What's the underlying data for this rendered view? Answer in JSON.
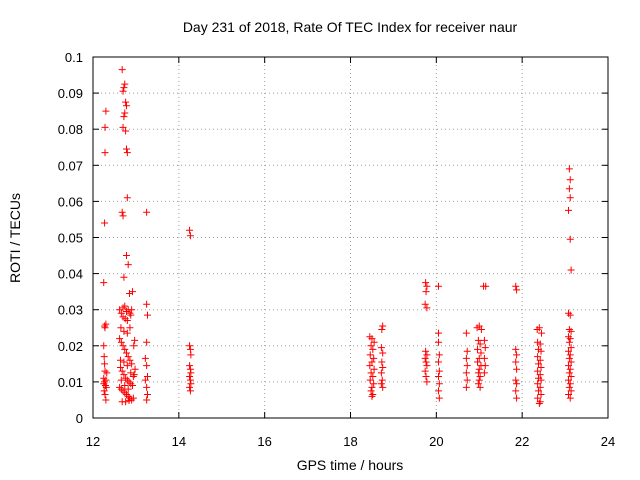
{
  "chart_data": {
    "type": "scatter",
    "title": "Day 231 of 2018, Rate Of TEC Index for receiver naur",
    "xlabel": "GPS time / hours",
    "ylabel": "ROTI / TECUs",
    "xlim": [
      12,
      24
    ],
    "ylim": [
      0,
      0.1
    ],
    "xticks": [
      12,
      14,
      16,
      18,
      20,
      22,
      24
    ],
    "yticks": [
      0,
      0.01,
      0.02,
      0.03,
      0.04,
      0.05,
      0.06,
      0.07,
      0.08,
      0.09,
      0.1
    ],
    "xtick_labels": [
      "12",
      "14",
      "16",
      "18",
      "20",
      "22",
      "24"
    ],
    "ytick_labels": [
      "0",
      "0.01",
      "0.02",
      "0.03",
      "0.04",
      "0.05",
      "0.06",
      "0.07",
      "0.08",
      "0.09",
      "0.1"
    ],
    "grid": true,
    "marker": "+",
    "color": "#ff0000",
    "series": [
      {
        "name": "ROTI",
        "points": [
          [
            12.25,
            0.0375
          ],
          [
            12.27,
            0.054
          ],
          [
            12.28,
            0.0735
          ],
          [
            12.28,
            0.0805
          ],
          [
            12.3,
            0.085
          ],
          [
            12.27,
            0.0255
          ],
          [
            12.28,
            0.025
          ],
          [
            12.3,
            0.026
          ],
          [
            12.25,
            0.02
          ],
          [
            12.26,
            0.017
          ],
          [
            12.27,
            0.015
          ],
          [
            12.28,
            0.013
          ],
          [
            12.25,
            0.011
          ],
          [
            12.27,
            0.01
          ],
          [
            12.29,
            0.009
          ],
          [
            12.31,
            0.0085
          ],
          [
            12.26,
            0.0075
          ],
          [
            12.28,
            0.0065
          ],
          [
            12.3,
            0.005
          ],
          [
            12.32,
            0.0125
          ],
          [
            12.3,
            0.0105
          ],
          [
            12.25,
            0.0095
          ],
          [
            12.68,
            0.0965
          ],
          [
            12.7,
            0.0905
          ],
          [
            12.72,
            0.0915
          ],
          [
            12.74,
            0.0925
          ],
          [
            12.76,
            0.0875
          ],
          [
            12.78,
            0.0865
          ],
          [
            12.74,
            0.0845
          ],
          [
            12.72,
            0.0835
          ],
          [
            12.76,
            0.0795
          ],
          [
            12.7,
            0.0805
          ],
          [
            12.78,
            0.0745
          ],
          [
            12.8,
            0.0735
          ],
          [
            12.68,
            0.057
          ],
          [
            12.7,
            0.056
          ],
          [
            12.8,
            0.061
          ],
          [
            12.78,
            0.045
          ],
          [
            12.82,
            0.0425
          ],
          [
            12.72,
            0.039
          ],
          [
            12.85,
            0.0345
          ],
          [
            12.92,
            0.035
          ],
          [
            13.25,
            0.057
          ],
          [
            12.62,
            0.03
          ],
          [
            12.66,
            0.029
          ],
          [
            12.7,
            0.0305
          ],
          [
            12.74,
            0.031
          ],
          [
            12.78,
            0.0295
          ],
          [
            12.82,
            0.03
          ],
          [
            12.86,
            0.029
          ],
          [
            12.9,
            0.03
          ],
          [
            12.7,
            0.028
          ],
          [
            12.75,
            0.0275
          ],
          [
            12.8,
            0.027
          ],
          [
            12.88,
            0.0285
          ],
          [
            12.65,
            0.025
          ],
          [
            12.72,
            0.024
          ],
          [
            12.8,
            0.0235
          ],
          [
            12.86,
            0.025
          ],
          [
            12.62,
            0.022
          ],
          [
            12.66,
            0.021
          ],
          [
            12.7,
            0.02
          ],
          [
            12.74,
            0.019
          ],
          [
            12.78,
            0.018
          ],
          [
            12.82,
            0.017
          ],
          [
            12.86,
            0.016
          ],
          [
            12.9,
            0.015
          ],
          [
            12.64,
            0.014
          ],
          [
            12.68,
            0.013
          ],
          [
            12.72,
            0.012
          ],
          [
            12.76,
            0.011
          ],
          [
            12.8,
            0.0105
          ],
          [
            12.84,
            0.01
          ],
          [
            12.88,
            0.0095
          ],
          [
            12.92,
            0.009
          ],
          [
            12.62,
            0.0085
          ],
          [
            12.66,
            0.008
          ],
          [
            12.7,
            0.0075
          ],
          [
            12.74,
            0.007
          ],
          [
            12.78,
            0.0065
          ],
          [
            12.82,
            0.006
          ],
          [
            12.86,
            0.0055
          ],
          [
            12.9,
            0.005
          ],
          [
            12.68,
            0.0045
          ],
          [
            12.76,
            0.0045
          ],
          [
            12.84,
            0.0048
          ],
          [
            12.94,
            0.0055
          ],
          [
            12.96,
            0.012
          ],
          [
            12.98,
            0.0135
          ],
          [
            12.95,
            0.02
          ],
          [
            12.97,
            0.0215
          ],
          [
            12.64,
            0.016
          ],
          [
            12.72,
            0.0155
          ],
          [
            12.8,
            0.0145
          ],
          [
            12.88,
            0.0125
          ],
          [
            12.94,
            0.0115
          ],
          [
            12.66,
            0.0105
          ],
          [
            12.74,
            0.009
          ],
          [
            12.82,
            0.008
          ],
          [
            13.25,
            0.0315
          ],
          [
            13.27,
            0.0285
          ],
          [
            13.25,
            0.021
          ],
          [
            13.22,
            0.0165
          ],
          [
            13.25,
            0.0145
          ],
          [
            13.27,
            0.0115
          ],
          [
            13.22,
            0.0105
          ],
          [
            13.25,
            0.0085
          ],
          [
            13.27,
            0.0065
          ],
          [
            13.25,
            0.005
          ],
          [
            14.25,
            0.052
          ],
          [
            14.27,
            0.0505
          ],
          [
            14.25,
            0.02
          ],
          [
            14.27,
            0.019
          ],
          [
            14.28,
            0.0175
          ],
          [
            14.25,
            0.0145
          ],
          [
            14.27,
            0.0135
          ],
          [
            14.28,
            0.0125
          ],
          [
            14.25,
            0.0115
          ],
          [
            14.27,
            0.0105
          ],
          [
            14.28,
            0.0095
          ],
          [
            14.25,
            0.0085
          ],
          [
            14.27,
            0.0075
          ],
          [
            18.45,
            0.0225
          ],
          [
            18.5,
            0.022
          ],
          [
            18.55,
            0.021
          ],
          [
            18.48,
            0.02
          ],
          [
            18.52,
            0.019
          ],
          [
            18.46,
            0.0175
          ],
          [
            18.54,
            0.0165
          ],
          [
            18.5,
            0.0155
          ],
          [
            18.45,
            0.0145
          ],
          [
            18.55,
            0.0135
          ],
          [
            18.48,
            0.0125
          ],
          [
            18.52,
            0.0115
          ],
          [
            18.46,
            0.0105
          ],
          [
            18.54,
            0.0095
          ],
          [
            18.5,
            0.0085
          ],
          [
            18.48,
            0.0075
          ],
          [
            18.52,
            0.0065
          ],
          [
            18.5,
            0.006
          ],
          [
            18.75,
            0.0255
          ],
          [
            18.73,
            0.0245
          ],
          [
            18.72,
            0.0195
          ],
          [
            18.75,
            0.018
          ],
          [
            18.73,
            0.0155
          ],
          [
            18.75,
            0.014
          ],
          [
            18.72,
            0.0125
          ],
          [
            18.74,
            0.0105
          ],
          [
            18.72,
            0.0095
          ],
          [
            18.75,
            0.0085
          ],
          [
            19.75,
            0.0375
          ],
          [
            19.78,
            0.0365
          ],
          [
            19.76,
            0.035
          ],
          [
            19.74,
            0.0315
          ],
          [
            19.78,
            0.0305
          ],
          [
            19.75,
            0.0185
          ],
          [
            19.78,
            0.0175
          ],
          [
            19.74,
            0.0165
          ],
          [
            19.76,
            0.0155
          ],
          [
            19.78,
            0.0145
          ],
          [
            19.74,
            0.013
          ],
          [
            19.76,
            0.0115
          ],
          [
            19.78,
            0.01
          ],
          [
            20.05,
            0.0365
          ],
          [
            20.05,
            0.0235
          ],
          [
            20.05,
            0.021
          ],
          [
            20.07,
            0.0175
          ],
          [
            20.05,
            0.0155
          ],
          [
            20.07,
            0.013
          ],
          [
            20.05,
            0.0115
          ],
          [
            20.07,
            0.0095
          ],
          [
            20.05,
            0.0075
          ],
          [
            20.07,
            0.0055
          ],
          [
            20.7,
            0.0235
          ],
          [
            20.72,
            0.0185
          ],
          [
            20.7,
            0.0165
          ],
          [
            20.72,
            0.0145
          ],
          [
            20.7,
            0.0125
          ],
          [
            20.72,
            0.0105
          ],
          [
            20.7,
            0.0085
          ],
          [
            20.95,
            0.025
          ],
          [
            21.0,
            0.0255
          ],
          [
            21.05,
            0.0245
          ],
          [
            20.98,
            0.0215
          ],
          [
            21.02,
            0.0205
          ],
          [
            20.96,
            0.019
          ],
          [
            21.04,
            0.018
          ],
          [
            21.0,
            0.0165
          ],
          [
            20.96,
            0.0155
          ],
          [
            21.04,
            0.0145
          ],
          [
            21.0,
            0.0135
          ],
          [
            20.98,
            0.0125
          ],
          [
            21.02,
            0.0115
          ],
          [
            21.0,
            0.0105
          ],
          [
            20.98,
            0.0095
          ],
          [
            21.02,
            0.0085
          ],
          [
            21.1,
            0.0365
          ],
          [
            21.15,
            0.0365
          ],
          [
            21.12,
            0.0215
          ],
          [
            21.14,
            0.0195
          ],
          [
            21.12,
            0.0165
          ],
          [
            21.14,
            0.0145
          ],
          [
            21.12,
            0.0125
          ],
          [
            21.85,
            0.0365
          ],
          [
            21.87,
            0.0355
          ],
          [
            21.85,
            0.019
          ],
          [
            21.87,
            0.0175
          ],
          [
            21.85,
            0.0155
          ],
          [
            21.87,
            0.0135
          ],
          [
            21.85,
            0.0105
          ],
          [
            21.87,
            0.0095
          ],
          [
            21.85,
            0.0075
          ],
          [
            21.87,
            0.0055
          ],
          [
            22.35,
            0.0245
          ],
          [
            22.4,
            0.025
          ],
          [
            22.45,
            0.0235
          ],
          [
            22.36,
            0.021
          ],
          [
            22.42,
            0.0205
          ],
          [
            22.38,
            0.019
          ],
          [
            22.44,
            0.0185
          ],
          [
            22.36,
            0.017
          ],
          [
            22.42,
            0.016
          ],
          [
            22.38,
            0.015
          ],
          [
            22.44,
            0.014
          ],
          [
            22.36,
            0.013
          ],
          [
            22.42,
            0.012
          ],
          [
            22.38,
            0.011
          ],
          [
            22.44,
            0.0105
          ],
          [
            22.36,
            0.0095
          ],
          [
            22.42,
            0.0085
          ],
          [
            22.38,
            0.0075
          ],
          [
            22.44,
            0.0065
          ],
          [
            22.36,
            0.0055
          ],
          [
            22.42,
            0.0045
          ],
          [
            22.4,
            0.004
          ],
          [
            23.1,
            0.069
          ],
          [
            23.12,
            0.066
          ],
          [
            23.1,
            0.0635
          ],
          [
            23.12,
            0.061
          ],
          [
            23.08,
            0.0575
          ],
          [
            23.12,
            0.0495
          ],
          [
            23.14,
            0.041
          ],
          [
            23.08,
            0.029
          ],
          [
            23.12,
            0.0285
          ],
          [
            23.1,
            0.0245
          ],
          [
            23.14,
            0.024
          ],
          [
            23.08,
            0.0225
          ],
          [
            23.12,
            0.022
          ],
          [
            23.1,
            0.021
          ],
          [
            23.14,
            0.0195
          ],
          [
            23.08,
            0.0185
          ],
          [
            23.12,
            0.0175
          ],
          [
            23.1,
            0.0165
          ],
          [
            23.14,
            0.0155
          ],
          [
            23.08,
            0.0145
          ],
          [
            23.12,
            0.0135
          ],
          [
            23.1,
            0.0125
          ],
          [
            23.14,
            0.0115
          ],
          [
            23.08,
            0.0105
          ],
          [
            23.12,
            0.0095
          ],
          [
            23.1,
            0.0085
          ],
          [
            23.14,
            0.0075
          ],
          [
            23.08,
            0.0065
          ],
          [
            23.12,
            0.0055
          ]
        ]
      }
    ]
  }
}
